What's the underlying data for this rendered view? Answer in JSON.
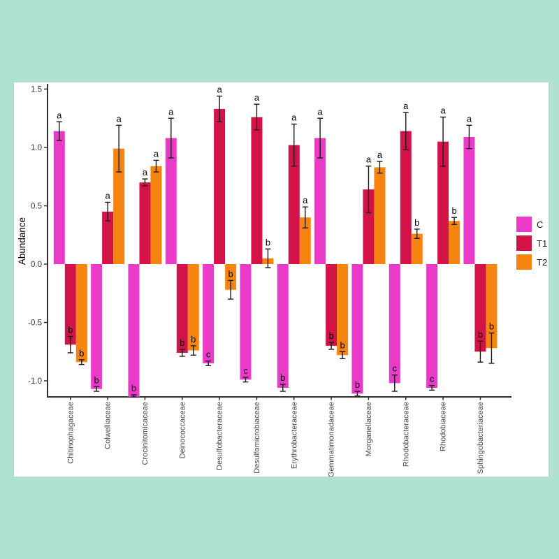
{
  "figure": {
    "background_color": "#afe3d0",
    "card_color": "#ffffff"
  },
  "axis": {
    "line_color": "#2f2f2f",
    "tick_label_color": "#333333",
    "category_label_color": "#4a4a4a",
    "error_bar_color": "#1a1a1a",
    "letter_color": "#000000"
  },
  "chart_data": {
    "type": "bar",
    "title": "",
    "xlabel": "",
    "ylabel": "Abundance",
    "ylim": [
      -1.14,
      1.55
    ],
    "yticks": [
      "1.5",
      "1.0",
      "0.5",
      "0.0",
      "-0.5",
      "-1.0"
    ],
    "ytick_values": [
      1.5,
      1.0,
      0.5,
      0.0,
      -0.5,
      -1.0
    ],
    "grid": false,
    "legend_position": "right",
    "categories": [
      "Chitinophagaceae",
      "Colwelliaceae",
      "Crocinitomicaceae",
      "Deinococcaceae",
      "Desulfobacteraceae",
      "Desulfomicrobiaceae",
      "Erythrobacteraceae",
      "Gemmatimonadaceae",
      "Morganellaceae",
      "Rhodobacteraceae",
      "Rhodobiaceae",
      "Sphingobacteriaceae"
    ],
    "series": [
      {
        "name": "C",
        "color": "#ea3bc8",
        "values": [
          1.14,
          -1.07,
          -1.14,
          1.08,
          -0.85,
          -0.99,
          -1.06,
          1.08,
          -1.11,
          -1.02,
          -1.06,
          1.09
        ],
        "errors": [
          0.08,
          0.02,
          0.02,
          0.17,
          0.02,
          0.02,
          0.03,
          0.17,
          0.02,
          0.07,
          0.02,
          0.1
        ],
        "letters": [
          "a",
          "b",
          "b",
          "a",
          "c",
          "c",
          "b",
          "a",
          "b",
          "c",
          "c",
          "a"
        ]
      },
      {
        "name": "T1",
        "color": "#d31247",
        "values": [
          -0.69,
          0.45,
          0.7,
          -0.76,
          1.33,
          1.26,
          1.02,
          -0.7,
          0.64,
          1.14,
          1.05,
          -0.75
        ],
        "errors": [
          0.07,
          0.08,
          0.03,
          0.03,
          0.11,
          0.11,
          0.18,
          0.03,
          0.2,
          0.16,
          0.21,
          0.09
        ],
        "letters": [
          "b",
          "a",
          "a",
          "b",
          "a",
          "a",
          "a",
          "b",
          "a",
          "a",
          "a",
          "b"
        ]
      },
      {
        "name": "T2",
        "color": "#f58411",
        "values": [
          -0.84,
          0.99,
          0.84,
          -0.74,
          -0.22,
          0.05,
          0.4,
          -0.78,
          0.83,
          0.26,
          0.37,
          -0.72
        ],
        "errors": [
          0.02,
          0.2,
          0.05,
          0.04,
          0.08,
          0.08,
          0.09,
          0.03,
          0.05,
          0.04,
          0.03,
          0.13
        ],
        "letters": [
          "b",
          "a",
          "a",
          "b",
          "b",
          "b",
          "a",
          "b",
          "a",
          "b",
          "b",
          "b"
        ]
      }
    ]
  }
}
